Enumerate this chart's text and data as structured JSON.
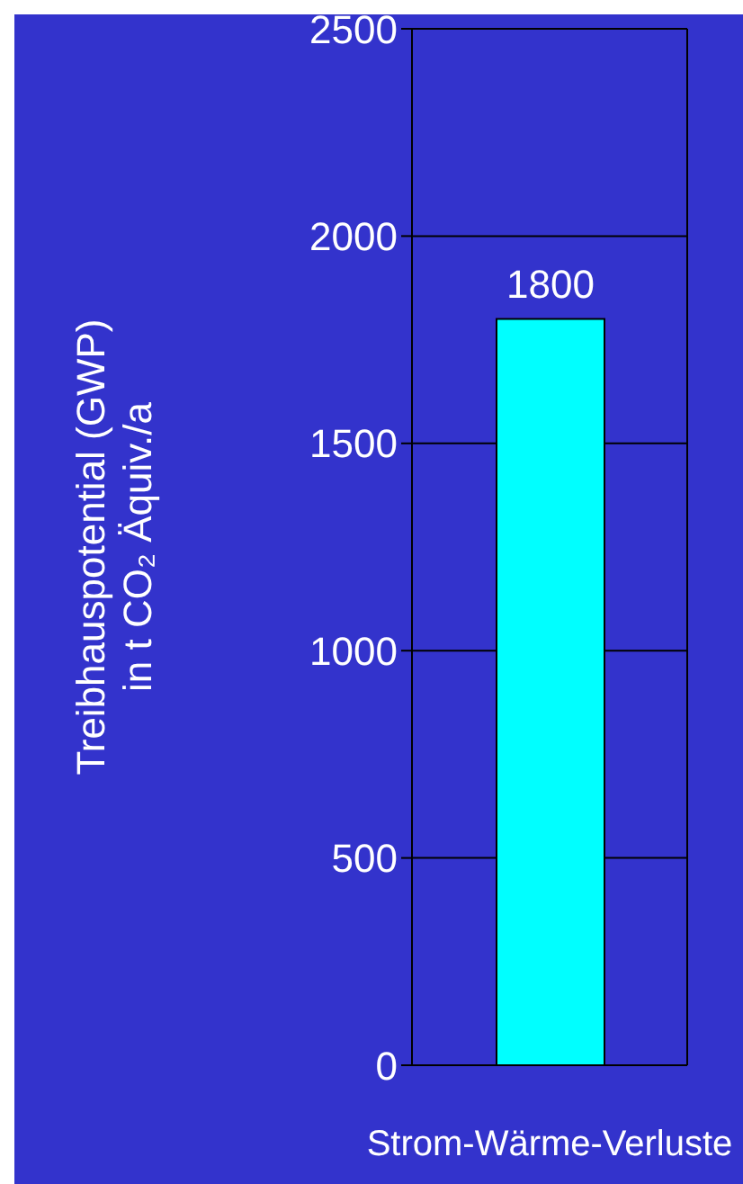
{
  "chart_data": {
    "type": "bar",
    "categories": [
      "Strom-Wärme-Verluste"
    ],
    "values": [
      1800
    ],
    "color": "#00ffff",
    "ylabel": "Treibhauspotential (GWP)\nin t CO₂ Äquiv./a",
    "ylim": [
      0,
      2500
    ],
    "yticks": [
      0,
      500,
      1000,
      1500,
      2000,
      2500
    ],
    "grid": "y",
    "data_labels": true
  }
}
